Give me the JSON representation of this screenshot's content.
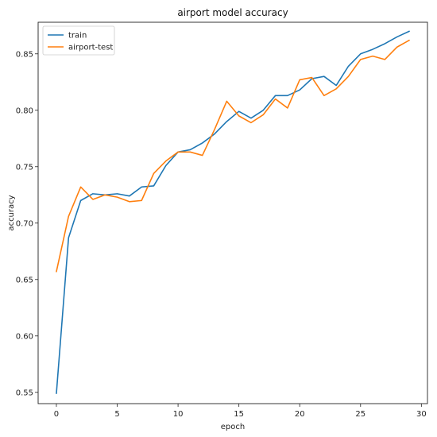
{
  "chart_data": {
    "type": "line",
    "title": "airport model accuracy",
    "xlabel": "epoch",
    "ylabel": "accuracy",
    "xlim": [
      -1.5,
      30.5
    ],
    "ylim": [
      0.54,
      0.878
    ],
    "xticks": [
      0,
      5,
      10,
      15,
      20,
      25,
      30
    ],
    "yticks": [
      0.55,
      0.6,
      0.65,
      0.7,
      0.75,
      0.8,
      0.85
    ],
    "xtick_labels": [
      "0",
      "5",
      "10",
      "15",
      "20",
      "25",
      "30"
    ],
    "ytick_labels": [
      "0.55",
      "0.60",
      "0.65",
      "0.70",
      "0.75",
      "0.80",
      "0.85"
    ],
    "grid": false,
    "legend_position": "top-left",
    "x": [
      0,
      1,
      2,
      3,
      4,
      5,
      6,
      7,
      8,
      9,
      10,
      11,
      12,
      13,
      14,
      15,
      16,
      17,
      18,
      19,
      20,
      21,
      22,
      23,
      24,
      25,
      26,
      27,
      28,
      29
    ],
    "series": [
      {
        "name": "train",
        "color": "#1f77b4",
        "values": [
          0.549,
          0.687,
          0.72,
          0.726,
          0.725,
          0.726,
          0.724,
          0.732,
          0.733,
          0.751,
          0.763,
          0.765,
          0.771,
          0.779,
          0.79,
          0.799,
          0.793,
          0.8,
          0.813,
          0.813,
          0.818,
          0.828,
          0.83,
          0.822,
          0.839,
          0.85,
          0.854,
          0.859,
          0.865,
          0.87
        ]
      },
      {
        "name": "airport-test",
        "color": "#ff7f0e",
        "values": [
          0.657,
          0.706,
          0.732,
          0.721,
          0.725,
          0.723,
          0.719,
          0.72,
          0.744,
          0.755,
          0.763,
          0.763,
          0.76,
          0.783,
          0.808,
          0.795,
          0.789,
          0.796,
          0.81,
          0.802,
          0.827,
          0.829,
          0.813,
          0.819,
          0.83,
          0.845,
          0.848,
          0.845,
          0.856,
          0.862
        ]
      }
    ]
  }
}
